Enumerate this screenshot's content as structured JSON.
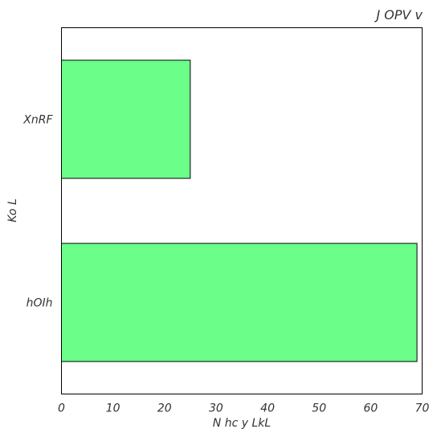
{
  "chart_data": {
    "type": "bar",
    "orientation": "horizontal",
    "title": "J OPV  v",
    "xlabel": "N hc y LkL",
    "ylabel": "Ko L",
    "categories": [
      "XnRF",
      "hOIh"
    ],
    "values": [
      25,
      69
    ],
    "xlim": [
      0,
      70
    ],
    "xticks": [
      0,
      10,
      20,
      30,
      40,
      50,
      60,
      70
    ],
    "grid": false,
    "bar_color": "#6bff8a",
    "edge_color": "#000000"
  }
}
